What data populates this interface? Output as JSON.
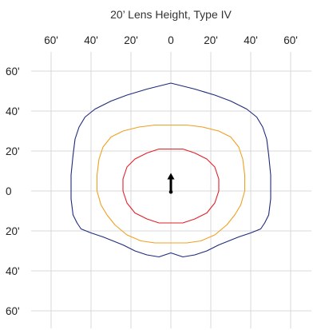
{
  "chart_data": {
    "type": "line",
    "title": "20’ Lens Height, Type IV",
    "xlabel": "",
    "ylabel": "",
    "xlim": [
      -70,
      70
    ],
    "ylim": [
      -70,
      70
    ],
    "grid": true,
    "x_ticks": [
      -60,
      -40,
      -20,
      0,
      20,
      40,
      60
    ],
    "y_ticks": [
      60,
      40,
      20,
      0,
      -20,
      -40,
      -60
    ],
    "x_tick_labels": [
      "60'",
      "40'",
      "20'",
      "0",
      "20'",
      "40'",
      "60'"
    ],
    "y_tick_labels": [
      "60'",
      "40'",
      "20'",
      "0",
      "20'",
      "40'",
      "60'"
    ],
    "colors": {
      "outer": "#1f2a7a",
      "middle": "#f0a020",
      "inner": "#e0202a",
      "arrow": "#000000"
    },
    "series": [
      {
        "points": [
          [
            0,
            54
          ],
          [
            -4,
            53
          ],
          [
            -12,
            51
          ],
          [
            -22,
            48
          ],
          [
            -30,
            45
          ],
          [
            -38,
            41
          ],
          [
            -43,
            37
          ],
          [
            -46,
            32
          ],
          [
            -48,
            26
          ],
          [
            -49,
            18
          ],
          [
            -50,
            8
          ],
          [
            -50,
            -4
          ],
          [
            -49,
            -12
          ],
          [
            -47,
            -16
          ],
          [
            -45,
            -19
          ],
          [
            -40,
            -21
          ],
          [
            -34,
            -23
          ],
          [
            -29,
            -25
          ],
          [
            -24,
            -27
          ],
          [
            -18,
            -30
          ],
          [
            -12,
            -32
          ],
          [
            -6,
            -33
          ],
          [
            -3,
            -32
          ],
          [
            0,
            -31
          ],
          [
            3,
            -32
          ],
          [
            6,
            -33
          ],
          [
            12,
            -32
          ],
          [
            18,
            -30
          ],
          [
            24,
            -27
          ],
          [
            29,
            -25
          ],
          [
            34,
            -23
          ],
          [
            40,
            -21
          ],
          [
            45,
            -19
          ],
          [
            47,
            -16
          ],
          [
            49,
            -12
          ],
          [
            50,
            -4
          ],
          [
            50,
            8
          ],
          [
            49,
            18
          ],
          [
            48,
            26
          ],
          [
            46,
            32
          ],
          [
            43,
            37
          ],
          [
            38,
            41
          ],
          [
            30,
            45
          ],
          [
            22,
            48
          ],
          [
            12,
            51
          ],
          [
            4,
            53
          ]
        ]
      },
      {
        "points": [
          [
            0,
            33
          ],
          [
            -8,
            33
          ],
          [
            -16,
            32
          ],
          [
            -24,
            30
          ],
          [
            -30,
            27
          ],
          [
            -34,
            22
          ],
          [
            -36,
            16
          ],
          [
            -37,
            8
          ],
          [
            -37,
            0
          ],
          [
            -35,
            -7
          ],
          [
            -32,
            -12
          ],
          [
            -28,
            -17
          ],
          [
            -22,
            -22
          ],
          [
            -15,
            -25
          ],
          [
            -8,
            -26
          ],
          [
            0,
            -26
          ],
          [
            8,
            -26
          ],
          [
            15,
            -25
          ],
          [
            22,
            -22
          ],
          [
            28,
            -17
          ],
          [
            32,
            -12
          ],
          [
            35,
            -7
          ],
          [
            37,
            0
          ],
          [
            37,
            8
          ],
          [
            36,
            16
          ],
          [
            34,
            22
          ],
          [
            30,
            27
          ],
          [
            24,
            30
          ],
          [
            16,
            32
          ],
          [
            8,
            33
          ]
        ]
      },
      {
        "points": [
          [
            0,
            21
          ],
          [
            -6,
            21
          ],
          [
            -12,
            19
          ],
          [
            -18,
            16
          ],
          [
            -22,
            12
          ],
          [
            -24,
            6
          ],
          [
            -24,
            0
          ],
          [
            -22,
            -6
          ],
          [
            -18,
            -11
          ],
          [
            -12,
            -14
          ],
          [
            -6,
            -16
          ],
          [
            0,
            -16
          ],
          [
            6,
            -16
          ],
          [
            12,
            -14
          ],
          [
            18,
            -11
          ],
          [
            22,
            -6
          ],
          [
            24,
            0
          ],
          [
            24,
            6
          ],
          [
            22,
            12
          ],
          [
            18,
            16
          ],
          [
            12,
            19
          ],
          [
            6,
            21
          ]
        ]
      }
    ],
    "arrow": {
      "from": [
        0,
        -0.5
      ],
      "to": [
        0,
        9
      ]
    }
  }
}
